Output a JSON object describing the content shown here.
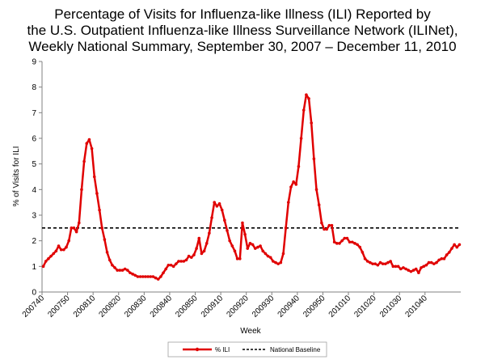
{
  "chart_data": {
    "type": "line",
    "title_lines": [
      "Percentage of Visits for Influenza-like Illness (ILI) Reported by",
      "the U.S. Outpatient Influenza-like Illness Surveillance Network (ILINet),",
      "Weekly National Summary, September 30, 2007 – December 11, 2010"
    ],
    "xlabel": "Week",
    "ylabel": "% of Visits for ILI",
    "ylim": [
      0,
      9
    ],
    "yticks": [
      0,
      1,
      2,
      3,
      4,
      5,
      6,
      7,
      8,
      9
    ],
    "xtick_labels": [
      "200740",
      "200750",
      "200810",
      "200820",
      "200830",
      "200840",
      "200850",
      "200910",
      "200920",
      "200930",
      "200940",
      "200950",
      "201010",
      "201020",
      "201030",
      "201040"
    ],
    "grid": false,
    "legend_position": "bottom-center",
    "colors": {
      "ili": "#e00000",
      "baseline": "#000000"
    },
    "series": [
      {
        "name": "% ILI",
        "values": [
          1.0,
          1.2,
          1.3,
          1.4,
          1.5,
          1.6,
          1.8,
          1.65,
          1.65,
          1.75,
          2.0,
          2.5,
          2.5,
          2.35,
          2.7,
          4.0,
          5.1,
          5.8,
          5.95,
          5.6,
          4.5,
          3.85,
          3.2,
          2.5,
          2.05,
          1.55,
          1.25,
          1.05,
          0.95,
          0.85,
          0.85,
          0.85,
          0.9,
          0.85,
          0.75,
          0.7,
          0.65,
          0.6,
          0.6,
          0.6,
          0.6,
          0.6,
          0.6,
          0.6,
          0.55,
          0.5,
          0.6,
          0.75,
          0.9,
          1.05,
          1.05,
          1.0,
          1.1,
          1.2,
          1.2,
          1.2,
          1.25,
          1.4,
          1.35,
          1.45,
          1.7,
          2.1,
          1.5,
          1.6,
          1.9,
          2.3,
          2.9,
          3.5,
          3.35,
          3.45,
          3.2,
          2.8,
          2.4,
          2.0,
          1.8,
          1.6,
          1.3,
          1.3,
          2.7,
          2.25,
          1.7,
          1.9,
          1.85,
          1.7,
          1.75,
          1.8,
          1.6,
          1.5,
          1.4,
          1.35,
          1.2,
          1.15,
          1.1,
          1.15,
          1.5,
          2.5,
          3.5,
          4.1,
          4.3,
          4.2,
          4.9,
          6.0,
          7.1,
          7.7,
          7.55,
          6.6,
          5.2,
          4.0,
          3.4,
          2.7,
          2.45,
          2.45,
          2.6,
          2.6,
          1.95,
          1.9,
          1.9,
          2.0,
          2.1,
          2.1,
          1.95,
          1.95,
          1.9,
          1.85,
          1.75,
          1.55,
          1.3,
          1.2,
          1.15,
          1.1,
          1.1,
          1.05,
          1.15,
          1.1,
          1.1,
          1.15,
          1.2,
          1.0,
          1.0,
          1.0,
          0.9,
          0.95,
          0.9,
          0.85,
          0.8,
          0.85,
          0.9,
          0.75,
          0.95,
          1.0,
          1.05,
          1.15,
          1.15,
          1.1,
          1.15,
          1.25,
          1.3,
          1.3,
          1.45,
          1.55,
          1.7,
          1.85,
          1.75,
          1.85
        ]
      },
      {
        "name": "National Baseline",
        "values": [
          2.5
        ]
      }
    ]
  }
}
